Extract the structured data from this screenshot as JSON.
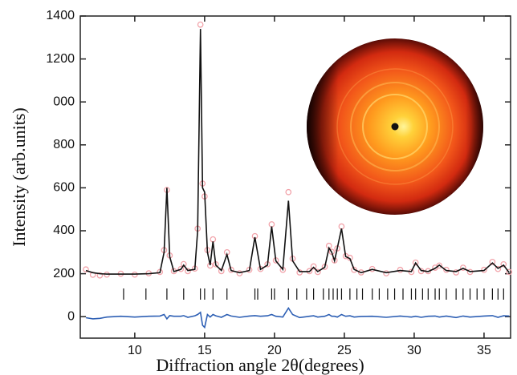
{
  "chart_data": {
    "type": "line",
    "ylabel": "Intensity (arb.units)",
    "xlabel": "Diffraction angle  2θ(degrees)",
    "x": [
      6.5,
      7,
      7.5,
      8,
      9,
      10,
      11,
      11.8,
      12.1,
      12.3,
      12.5,
      12.8,
      13.3,
      13.5,
      13.8,
      14.3,
      14.5,
      14.7,
      14.85,
      15.0,
      15.2,
      15.4,
      15.6,
      15.8,
      16.2,
      16.6,
      16.9,
      17.5,
      18.2,
      18.6,
      19.0,
      19.5,
      19.8,
      20.1,
      20.6,
      21.0,
      21.3,
      21.8,
      22.5,
      22.8,
      23.1,
      23.6,
      23.9,
      24.1,
      24.3,
      24.5,
      24.8,
      25.1,
      25.4,
      25.7,
      26.2,
      27,
      28,
      29,
      29.8,
      30.1,
      30.5,
      31,
      31.5,
      31.8,
      32.3,
      33,
      33.5,
      34,
      35,
      35.6,
      36,
      36.4,
      36.8
    ],
    "series": [
      {
        "style": "markers",
        "color": "#f2a3aa",
        "values": [
          220,
          195,
          192,
          196,
          200,
          196,
          202,
          208,
          310,
          590,
          285,
          212,
          222,
          245,
          212,
          224,
          410,
          1360,
          620,
          560,
          310,
          238,
          360,
          244,
          212,
          300,
          218,
          202,
          218,
          375,
          222,
          244,
          430,
          262,
          218,
          580,
          270,
          206,
          212,
          234,
          208,
          232,
          330,
          302,
          262,
          318,
          420,
          282,
          274,
          218,
          206,
          222,
          202,
          218,
          208,
          252,
          212,
          212,
          228,
          238,
          218,
          206,
          228,
          208,
          218,
          255,
          222,
          244,
          208
        ]
      },
      {
        "style": "line",
        "color": "#111111",
        "values": [
          215,
          205,
          200,
          198,
          198,
          198,
          200,
          205,
          300,
          600,
          280,
          210,
          220,
          240,
          215,
          220,
          400,
          1340,
          600,
          580,
          300,
          240,
          350,
          240,
          215,
          290,
          215,
          205,
          215,
          370,
          220,
          240,
          420,
          260,
          220,
          540,
          260,
          210,
          210,
          230,
          210,
          230,
          320,
          300,
          260,
          320,
          410,
          280,
          270,
          220,
          205,
          220,
          205,
          215,
          210,
          250,
          215,
          210,
          225,
          240,
          215,
          210,
          225,
          210,
          215,
          250,
          225,
          240,
          205
        ]
      },
      {
        "style": "line",
        "color": "#2d5fb4",
        "values": [
          -5,
          -10,
          -8,
          -2,
          2,
          -2,
          2,
          3,
          10,
          -10,
          5,
          2,
          2,
          5,
          -3,
          4,
          10,
          20,
          -40,
          -50,
          10,
          -2,
          10,
          4,
          -3,
          10,
          3,
          -3,
          3,
          5,
          2,
          4,
          10,
          2,
          -2,
          40,
          10,
          -4,
          2,
          4,
          -2,
          2,
          10,
          2,
          2,
          -2,
          10,
          2,
          4,
          -2,
          1,
          2,
          -3,
          3,
          -2,
          2,
          -3,
          2,
          3,
          -2,
          3,
          -4,
          3,
          -2,
          3,
          5,
          -3,
          4,
          3
        ]
      }
    ],
    "reflections": [
      9.2,
      10.8,
      12.3,
      13.5,
      14.7,
      15.0,
      15.6,
      16.6,
      18.6,
      18.8,
      19.8,
      20.0,
      21.0,
      21.6,
      22.3,
      22.8,
      23.5,
      23.9,
      24.2,
      24.5,
      24.8,
      25.4,
      25.9,
      26.3,
      27.0,
      27.5,
      28.1,
      28.6,
      29.2,
      29.8,
      30.1,
      30.6,
      31.0,
      31.5,
      31.8,
      32.3,
      33.0,
      33.5,
      34.0,
      34.5,
      35.0,
      35.6,
      36.0,
      36.4
    ],
    "reflections_color": "#111111",
    "xlim": [
      6.1,
      36.9
    ],
    "xticks": [
      10,
      15,
      20,
      25,
      30,
      35
    ],
    "ylim": [
      -100,
      1400
    ],
    "yticks": [
      0,
      200,
      400,
      600,
      800,
      {
        "value": 1000,
        "label": "000"
      },
      1200,
      1400
    ]
  }
}
